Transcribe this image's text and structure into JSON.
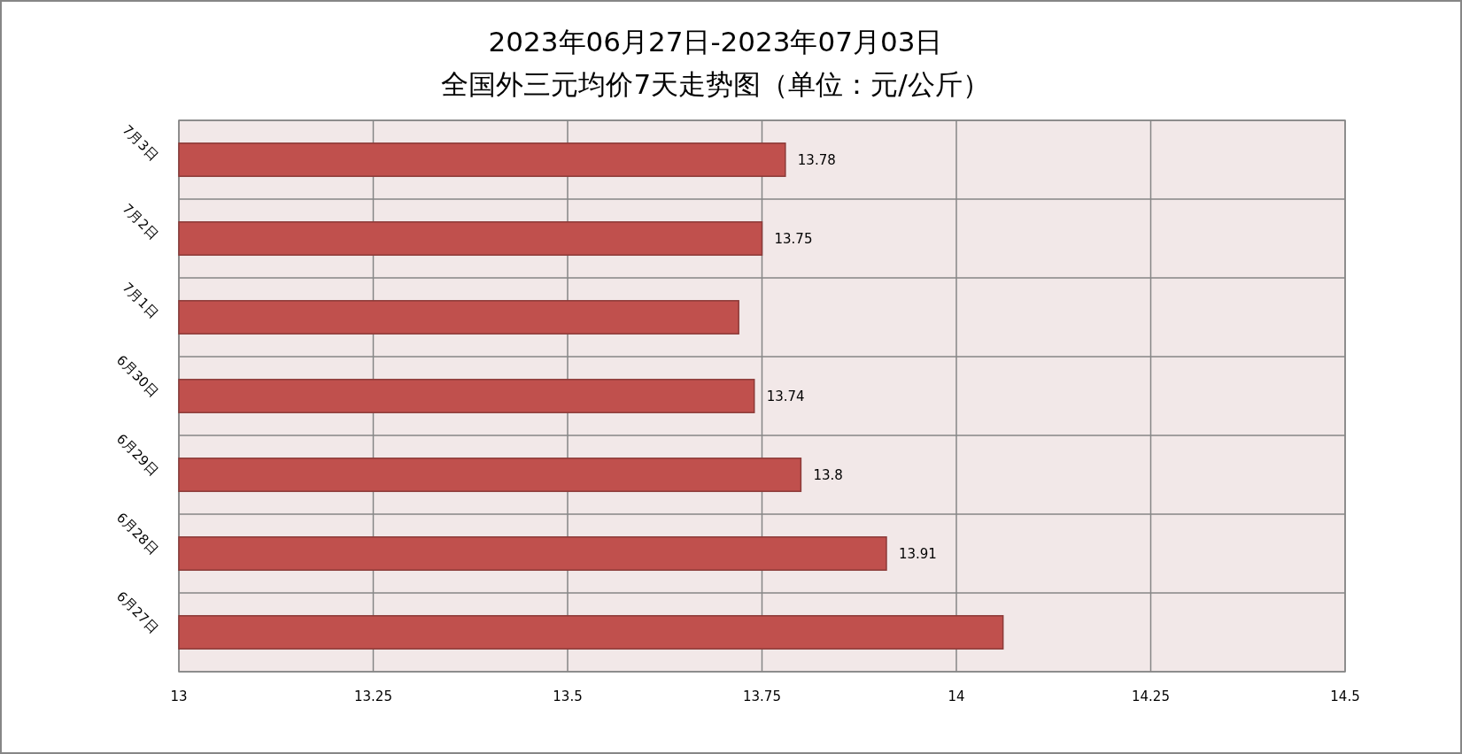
{
  "chart_data": {
    "type": "bar",
    "orientation": "horizontal",
    "title": "2023年06月27日-2023年07月03日",
    "subtitle": "全国外三元均价7天走势图（单位：元/公斤）",
    "categories": [
      "7月3日",
      "7月2日",
      "7月1日",
      "6月30日",
      "6月29日",
      "6月28日",
      "6月27日"
    ],
    "values": [
      13.78,
      13.75,
      13.72,
      13.74,
      13.8,
      13.91,
      14.06
    ],
    "value_labels": [
      "13.78",
      "13.75",
      null,
      "13.74",
      "13.8",
      "13.91",
      null
    ],
    "color": "#c0504d",
    "xlim": [
      13,
      14.5
    ],
    "xticks": [
      13,
      13.25,
      13.5,
      13.75,
      14,
      14.25,
      14.5
    ],
    "grid": true
  }
}
